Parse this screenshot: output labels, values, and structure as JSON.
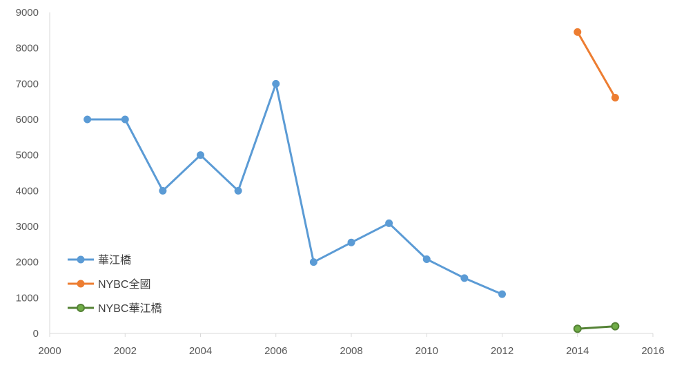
{
  "chart_data": {
    "type": "line",
    "title": "",
    "xlabel": "",
    "ylabel": "",
    "xlim": [
      2000,
      2016
    ],
    "ylim": [
      0,
      9000
    ],
    "x_ticks": [
      2000,
      2002,
      2004,
      2006,
      2008,
      2010,
      2012,
      2014,
      2016
    ],
    "y_ticks": [
      0,
      1000,
      2000,
      3000,
      4000,
      5000,
      6000,
      7000,
      8000,
      9000
    ],
    "grid": false,
    "legend_position": "bottom-left",
    "series": [
      {
        "name": "華江橋",
        "color": "#5B9BD5",
        "x": [
          2001,
          2002,
          2003,
          2004,
          2005,
          2006,
          2007,
          2008,
          2009,
          2010,
          2011,
          2012
        ],
        "y": [
          6000,
          6000,
          4000,
          5000,
          4000,
          7000,
          2000,
          2550,
          3090,
          2080,
          1550,
          1100
        ]
      },
      {
        "name": "NYBC全國",
        "color": "#ED7D31",
        "x": [
          2014,
          2015
        ],
        "y": [
          8450,
          6610
        ]
      },
      {
        "name": "NYBC華江橋",
        "color": "#548235",
        "marker_fill": "#70AD47",
        "x": [
          2014,
          2015
        ],
        "y": [
          130,
          200
        ]
      }
    ]
  }
}
